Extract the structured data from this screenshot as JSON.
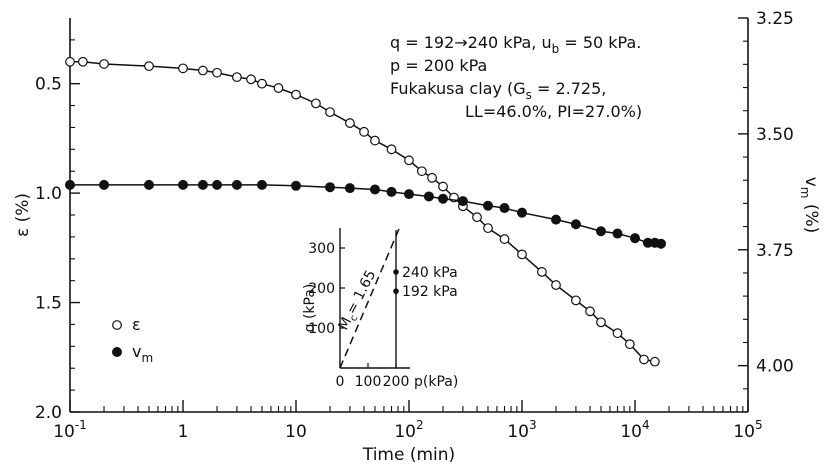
{
  "chart_data": {
    "type": "scatter",
    "x_scale": "log",
    "xlim": [
      0.1,
      100000
    ],
    "x_ticks": [
      {
        "value": 0.1,
        "label": "10",
        "exp": "-1"
      },
      {
        "value": 1,
        "label": "1",
        "exp": ""
      },
      {
        "value": 10,
        "label": "10",
        "exp": ""
      },
      {
        "value": 100,
        "label": "10",
        "exp": "2"
      },
      {
        "value": 1000,
        "label": "10",
        "exp": "3"
      },
      {
        "value": 10000,
        "label": "10",
        "exp": "4"
      },
      {
        "value": 100000,
        "label": "10",
        "exp": "5"
      }
    ],
    "xlabel": "Time (min)",
    "y_left": {
      "label_symbol": "ε",
      "label_unit": "(%)",
      "ylim": [
        2.0,
        0.2
      ],
      "inverted": true,
      "ticks": [
        "0.5",
        "1.0",
        "1.5",
        "2.0"
      ]
    },
    "y_right": {
      "label_symbol": "v",
      "label_sub": "m",
      "label_unit": "(%)",
      "ylim": [
        4.1,
        3.25
      ],
      "inverted": true,
      "ticks": [
        "3.25",
        "3.50",
        "3.75",
        "4.00"
      ]
    },
    "series": [
      {
        "name": "ε",
        "axis": "left",
        "marker": "open-circle",
        "points": [
          [
            0.1,
            0.4
          ],
          [
            0.13,
            0.4
          ],
          [
            0.2,
            0.41
          ],
          [
            0.5,
            0.42
          ],
          [
            1,
            0.43
          ],
          [
            1.5,
            0.44
          ],
          [
            2,
            0.45
          ],
          [
            3,
            0.47
          ],
          [
            4,
            0.48
          ],
          [
            5,
            0.5
          ],
          [
            7,
            0.52
          ],
          [
            10,
            0.55
          ],
          [
            15,
            0.59
          ],
          [
            20,
            0.63
          ],
          [
            30,
            0.68
          ],
          [
            40,
            0.72
          ],
          [
            50,
            0.76
          ],
          [
            70,
            0.8
          ],
          [
            100,
            0.85
          ],
          [
            130,
            0.9
          ],
          [
            160,
            0.93
          ],
          [
            200,
            0.97
          ],
          [
            250,
            1.02
          ],
          [
            300,
            1.06
          ],
          [
            400,
            1.11
          ],
          [
            500,
            1.16
          ],
          [
            700,
            1.21
          ],
          [
            1000,
            1.28
          ],
          [
            1500,
            1.36
          ],
          [
            2000,
            1.42
          ],
          [
            3000,
            1.49
          ],
          [
            4000,
            1.54
          ],
          [
            5000,
            1.59
          ],
          [
            7000,
            1.64
          ],
          [
            9000,
            1.69
          ],
          [
            12000,
            1.76
          ],
          [
            15000,
            1.77
          ]
        ]
      },
      {
        "name": "v",
        "name_sub": "m",
        "axis": "right",
        "marker": "filled-circle",
        "points": [
          [
            0.1,
            3.61
          ],
          [
            0.2,
            3.61
          ],
          [
            0.5,
            3.61
          ],
          [
            1,
            3.61
          ],
          [
            1.5,
            3.61
          ],
          [
            2,
            3.61
          ],
          [
            3,
            3.61
          ],
          [
            5,
            3.61
          ],
          [
            10,
            3.612
          ],
          [
            20,
            3.615
          ],
          [
            30,
            3.617
          ],
          [
            50,
            3.62
          ],
          [
            70,
            3.625
          ],
          [
            100,
            3.63
          ],
          [
            150,
            3.635
          ],
          [
            200,
            3.64
          ],
          [
            300,
            3.645
          ],
          [
            500,
            3.655
          ],
          [
            700,
            3.66
          ],
          [
            1000,
            3.67
          ],
          [
            2000,
            3.685
          ],
          [
            3000,
            3.695
          ],
          [
            5000,
            3.71
          ],
          [
            7000,
            3.715
          ],
          [
            10000,
            3.725
          ],
          [
            13000,
            3.735
          ],
          [
            15000,
            3.735
          ],
          [
            17000,
            3.737
          ]
        ]
      }
    ],
    "legend": {
      "placement": "lower-left",
      "items": [
        {
          "symbol": "ε",
          "sub": "",
          "marker": "open-circle"
        },
        {
          "symbol": "v",
          "sub": "m",
          "marker": "filled-circle"
        }
      ]
    },
    "annotations": {
      "line1_q": "q = 192→240 kPa, u",
      "line1_sub": "b",
      "line1_rest": " = 50 kPa.",
      "line2": "p = 200 kPa",
      "line3_a": "Fukakusa clay (G",
      "line3_sub": "s",
      "line3_b": " = 2.725,",
      "line4": "LL=46.0%, PI=27.0%)"
    },
    "inset": {
      "xlabel": "p(kPa)",
      "ylabel": "q (kPa)",
      "xlim": [
        0,
        250
      ],
      "ylim": [
        0,
        350
      ],
      "x_ticks": [
        0,
        100,
        200
      ],
      "y_ticks": [
        100,
        200,
        300
      ],
      "mc_label": "M",
      "mc_sub": "c",
      "mc_value": "= 1.65",
      "mc_slope": 1.65,
      "stress_path_p": 200,
      "points": [
        {
          "q": 240,
          "label": "240 kPa"
        },
        {
          "q": 192,
          "label": "192 kPa"
        }
      ]
    }
  }
}
